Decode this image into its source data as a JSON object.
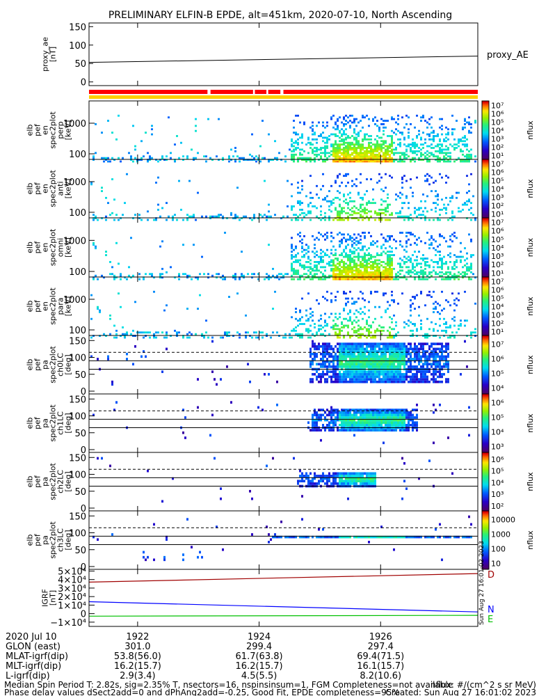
{
  "title": "PRELIMINARY ELFIN-B EPDE, alt=451km, 2020-07-10, North Ascending",
  "panels": [
    {
      "ylabel": [
        "proxy_ae",
        "[nT]"
      ],
      "right_label": "proxy_AE",
      "yticks": [
        "0",
        "50",
        "100",
        "150"
      ]
    },
    {
      "ylabel": [
        "elb",
        "pef",
        "en",
        "spec2plot",
        "perp",
        "[keV]"
      ],
      "cb_label": "nflux",
      "yticks": [
        "100",
        "1000"
      ]
    },
    {
      "ylabel": [
        "elb",
        "pef",
        "en",
        "spec2plot",
        "anti",
        "[keV]"
      ],
      "cb_label": "nflux",
      "yticks": [
        "100",
        "1000"
      ]
    },
    {
      "ylabel": [
        "elb",
        "pef",
        "en",
        "spec2plot",
        "omni",
        "[keV]"
      ],
      "cb_label": "nflux",
      "yticks": [
        "100",
        "1000"
      ]
    },
    {
      "ylabel": [
        "elb",
        "pef",
        "en",
        "spec2plot",
        "para",
        "[keV]"
      ],
      "cb_label": "nflux",
      "yticks": [
        "100",
        "1000"
      ]
    },
    {
      "ylabel": [
        "elb",
        "pef",
        "pa",
        "spec2plot",
        "ch0LC",
        "[deg]"
      ],
      "cb_label": "nflux",
      "yticks": [
        "0",
        "50",
        "100",
        "150"
      ]
    },
    {
      "ylabel": [
        "elb",
        "pef",
        "pa",
        "spec2plot",
        "ch1LC",
        "[deg]"
      ],
      "cb_label": "nflux",
      "yticks": [
        "0",
        "50",
        "100",
        "150"
      ]
    },
    {
      "ylabel": [
        "elb",
        "pef",
        "pa",
        "spec2plot",
        "ch2LC",
        "[deg]"
      ],
      "cb_label": "nflux",
      "yticks": [
        "0",
        "50",
        "100",
        "150"
      ]
    },
    {
      "ylabel": [
        "elb",
        "pef",
        "pa",
        "spec2plot",
        "ch3LC",
        "[deg]"
      ],
      "cb_label": "nflux",
      "yticks": [
        "0",
        "50",
        "100",
        "150"
      ]
    },
    {
      "ylabel": [
        "IGRF",
        "[nT]"
      ],
      "yticks": [
        "−1×10⁴",
        "0",
        "1×10⁴",
        "2×10⁴",
        "3×10⁴",
        "4×10⁴",
        "5×10⁴"
      ]
    }
  ],
  "colorbars": {
    "en": [
      "10¹",
      "10²",
      "10³",
      "10⁴",
      "10⁵",
      "10⁶",
      "10⁷"
    ],
    "ch0": [
      "10⁴",
      "10⁵",
      "10⁶",
      "10⁷"
    ],
    "ch1": [
      "10³",
      "10⁴",
      "10⁵",
      "10⁶"
    ],
    "ch2": [
      "10²",
      "10³",
      "10⁴",
      "10⁵",
      "10⁶"
    ],
    "ch3": [
      "10",
      "100",
      "1000",
      "10000"
    ]
  },
  "igrf_legend": [
    "D",
    "N",
    "E"
  ],
  "colors": {
    "D": "#a00000",
    "N": "#0000ff",
    "E": "#00c000",
    "bar_red": "#ff0000",
    "bar_yellow": "#ffd000"
  },
  "stamp": "Sun Aug 27 16:01:02 2023",
  "xaxis": {
    "labels": [
      "2020 Jul 10",
      "GLON (east)",
      "MLAT-igrf(dip)",
      "MLT-igrf(dip)",
      "L-igrf(dip)"
    ],
    "columns": [
      {
        "time": "1922",
        "glon": "301.0",
        "mlat": "53.8(56.0)",
        "mlt": "16.2(15.7)",
        "l": "2.9(3.4)"
      },
      {
        "time": "1924",
        "glon": "299.4",
        "mlat": "61.7(63.8)",
        "mlt": "16.2(15.7)",
        "l": "4.5(5.5)"
      },
      {
        "time": "1926",
        "glon": "297.4",
        "mlat": "69.4(71.5)",
        "mlt": "16.1(15.7)",
        "l": "8.2(10.6)"
      }
    ]
  },
  "footer": {
    "line1": "Median Spin Period T: 2.82s, sig=2.35% T, nsectors=16, nspinsinsum=1, FGM Completeness=not available",
    "line2": "Phase delay values dSect2add=0 and dPhAng2add=-0.25, Good Fit, EPDE completeness=95%",
    "right1": "nflux: #/(cm^2 s sr MeV)",
    "right2": "Created: Sun Aug 27 16:01:02 2023"
  },
  "chart_data": {
    "type": "heatmap",
    "title": "PRELIMINARY ELFIN-B EPDE, alt=451km, 2020-07-10, North Ascending",
    "x_ticks": [
      "1922",
      "1924",
      "1926"
    ],
    "x_tick_values": [
      1922,
      1924,
      1926
    ],
    "xlim": [
      1921.2,
      1927.6
    ],
    "proxy_ae": {
      "x": [
        1921.2,
        1927.6
      ],
      "y": [
        53,
        70
      ],
      "ylim": [
        -10,
        160
      ]
    },
    "coverage_gaps": [
      [
        1923.15,
        1923.2
      ],
      [
        1923.9,
        1923.93
      ],
      [
        1924.12,
        1924.15
      ],
      [
        1924.35,
        1924.4
      ]
    ],
    "flux_region_energy": {
      "x_range": [
        1924.5,
        1927.5
      ],
      "peak_x": [
        1925.2,
        1926.2
      ],
      "energy_range_keV": [
        60,
        1000
      ]
    },
    "flux_region_pitch": {
      "x_range": [
        1924.8,
        1927.1
      ],
      "peak_x": [
        1925.3,
        1926.4
      ],
      "pa_range_deg": [
        25,
        150
      ]
    },
    "pa_reference_lines_deg": [
      65,
      90,
      115
    ],
    "igrf": {
      "x": [
        1921.2,
        1927.6
      ],
      "series": [
        {
          "name": "D",
          "values": [
            37000,
            47000
          ]
        },
        {
          "name": "N",
          "values": [
            14000,
            2000
          ]
        },
        {
          "name": "E",
          "values": [
            -3000,
            -2000
          ]
        }
      ],
      "ylim": [
        -15000,
        52000
      ]
    }
  }
}
